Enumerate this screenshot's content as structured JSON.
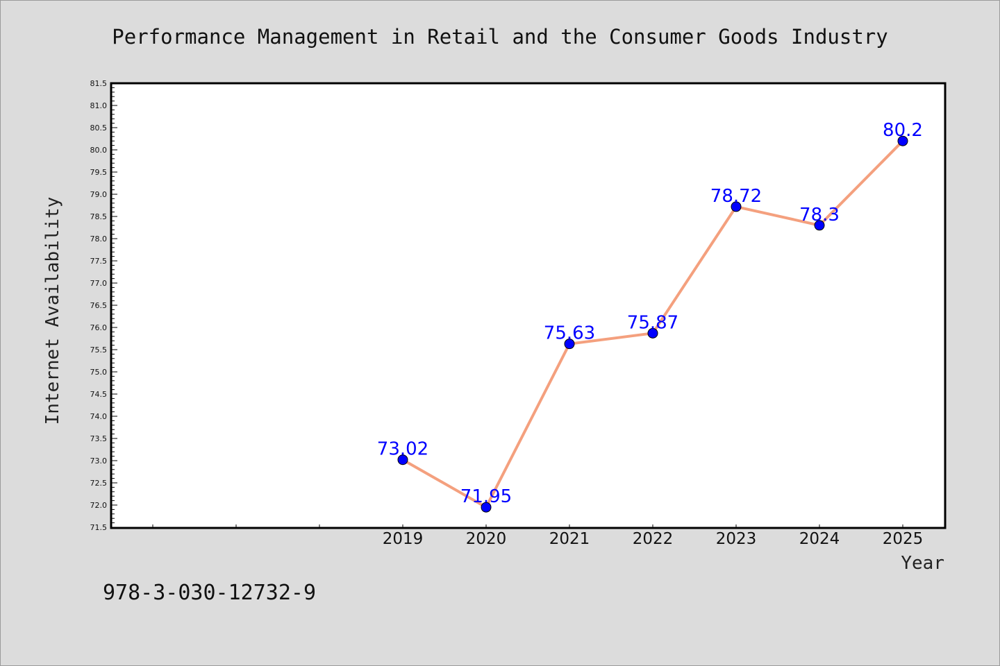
{
  "chart_data": {
    "type": "line",
    "title": "Performance Management in Retail and the Consumer Goods Industry",
    "xlabel": "Year",
    "ylabel": "Internet Availability",
    "categories": [
      "2019",
      "2020",
      "2021",
      "2022",
      "2023",
      "2024",
      "2025"
    ],
    "series": [
      {
        "values": [
          73.02,
          71.95,
          75.63,
          75.87,
          78.72,
          78.3,
          80.2
        ],
        "labels": [
          "73.02",
          "71.95",
          "75.63",
          "75.87",
          "78.72",
          "78.3",
          "80.2"
        ]
      }
    ],
    "ylim": [
      71.5,
      81.5
    ],
    "yticks": [
      "71.5",
      "72.0",
      "72.5",
      "73.0",
      "73.5",
      "74.0",
      "74.5",
      "75.0",
      "75.5",
      "76.0",
      "76.5",
      "77.0",
      "77.5",
      "78.0",
      "78.5",
      "79.0",
      "79.5",
      "80.0",
      "80.5",
      "81.0",
      "81.5"
    ],
    "grid": false,
    "colors": {
      "line": "#f4a07e",
      "marker": "#0000ff",
      "data_label": "#0000ff",
      "background": "#dcdcdc",
      "plot_background": "#ffffff"
    }
  },
  "footnote": "978-3-030-12732-9"
}
